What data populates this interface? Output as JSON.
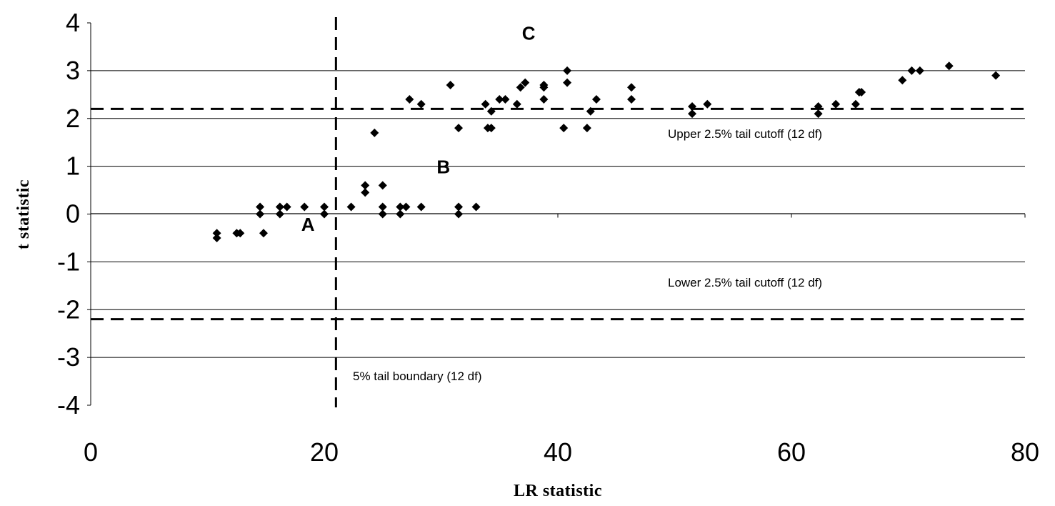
{
  "chart_data": {
    "type": "scatter",
    "xlabel": "LR statistic",
    "ylabel": "t statistic",
    "xlim": [
      0,
      80
    ],
    "ylim": [
      -4,
      4
    ],
    "x_ticks": [
      0,
      20,
      40,
      60,
      80
    ],
    "y_ticks": [
      4,
      3,
      2,
      1,
      0,
      -1,
      -2,
      -3,
      -4
    ],
    "x_tick_labels": [
      "0",
      "20",
      "40",
      "60",
      "80"
    ],
    "y_tick_labels": [
      "4",
      "3",
      "2",
      "1",
      "0",
      "-1",
      "-2",
      "-3",
      "-4"
    ],
    "grid": "horizontal",
    "marker": "diamond",
    "marker_color": "#000000",
    "reference_lines": [
      {
        "orientation": "horizontal",
        "value": 2.2,
        "style": "dashed",
        "label": "Upper 2.5% tail cutoff (12 df)"
      },
      {
        "orientation": "horizontal",
        "value": -2.2,
        "style": "dashed",
        "label": "Lower 2.5% tail cutoff (12 df)"
      },
      {
        "orientation": "vertical",
        "value": 21.0,
        "style": "dashed",
        "label": "5% tail boundary (12 df)"
      }
    ],
    "point_labels": [
      {
        "text": "A",
        "x": 18.6,
        "y": -0.2
      },
      {
        "text": "B",
        "x": 30.2,
        "y": 1.0
      },
      {
        "text": "C",
        "x": 37.5,
        "y": 3.8
      }
    ],
    "points": [
      {
        "x": 10.8,
        "y": -0.4
      },
      {
        "x": 10.8,
        "y": -0.5
      },
      {
        "x": 12.5,
        "y": -0.4
      },
      {
        "x": 12.8,
        "y": -0.4
      },
      {
        "x": 14.8,
        "y": -0.4
      },
      {
        "x": 14.5,
        "y": 0.15
      },
      {
        "x": 14.5,
        "y": 0.0
      },
      {
        "x": 16.2,
        "y": 0.15
      },
      {
        "x": 16.2,
        "y": 0.0
      },
      {
        "x": 16.8,
        "y": 0.15
      },
      {
        "x": 18.3,
        "y": 0.15
      },
      {
        "x": 20.0,
        "y": 0.15
      },
      {
        "x": 20.0,
        "y": 0.0
      },
      {
        "x": 22.3,
        "y": 0.15
      },
      {
        "x": 23.5,
        "y": 0.6
      },
      {
        "x": 23.5,
        "y": 0.45
      },
      {
        "x": 25.0,
        "y": 0.6
      },
      {
        "x": 25.0,
        "y": 0.15
      },
      {
        "x": 25.0,
        "y": 0.0
      },
      {
        "x": 26.5,
        "y": 0.15
      },
      {
        "x": 26.5,
        "y": 0.0
      },
      {
        "x": 27.0,
        "y": 0.15
      },
      {
        "x": 28.3,
        "y": 0.15
      },
      {
        "x": 31.5,
        "y": 0.15
      },
      {
        "x": 31.5,
        "y": 0.0
      },
      {
        "x": 33.0,
        "y": 0.15
      },
      {
        "x": 24.3,
        "y": 1.7
      },
      {
        "x": 27.3,
        "y": 2.4
      },
      {
        "x": 28.3,
        "y": 2.3
      },
      {
        "x": 30.8,
        "y": 2.7
      },
      {
        "x": 31.5,
        "y": 1.8
      },
      {
        "x": 33.8,
        "y": 2.3
      },
      {
        "x": 34.0,
        "y": 1.8
      },
      {
        "x": 34.3,
        "y": 2.15
      },
      {
        "x": 34.3,
        "y": 1.8
      },
      {
        "x": 35.0,
        "y": 2.4
      },
      {
        "x": 35.5,
        "y": 2.4
      },
      {
        "x": 36.5,
        "y": 2.3
      },
      {
        "x": 36.8,
        "y": 2.65
      },
      {
        "x": 37.2,
        "y": 2.75
      },
      {
        "x": 38.8,
        "y": 2.7
      },
      {
        "x": 38.8,
        "y": 2.65
      },
      {
        "x": 38.8,
        "y": 2.4
      },
      {
        "x": 40.5,
        "y": 1.8
      },
      {
        "x": 40.8,
        "y": 3.0
      },
      {
        "x": 40.8,
        "y": 2.75
      },
      {
        "x": 42.5,
        "y": 1.8
      },
      {
        "x": 42.8,
        "y": 2.15
      },
      {
        "x": 43.3,
        "y": 2.4
      },
      {
        "x": 46.3,
        "y": 2.65
      },
      {
        "x": 46.3,
        "y": 2.4
      },
      {
        "x": 51.5,
        "y": 2.25
      },
      {
        "x": 51.5,
        "y": 2.1
      },
      {
        "x": 52.8,
        "y": 2.3
      },
      {
        "x": 62.3,
        "y": 2.25
      },
      {
        "x": 62.3,
        "y": 2.1
      },
      {
        "x": 63.8,
        "y": 2.3
      },
      {
        "x": 65.5,
        "y": 2.3
      },
      {
        "x": 65.8,
        "y": 2.55
      },
      {
        "x": 66.0,
        "y": 2.55
      },
      {
        "x": 69.5,
        "y": 2.8
      },
      {
        "x": 70.3,
        "y": 3.0
      },
      {
        "x": 71.0,
        "y": 3.0
      },
      {
        "x": 73.5,
        "y": 3.1
      },
      {
        "x": 77.5,
        "y": 2.9
      }
    ]
  }
}
